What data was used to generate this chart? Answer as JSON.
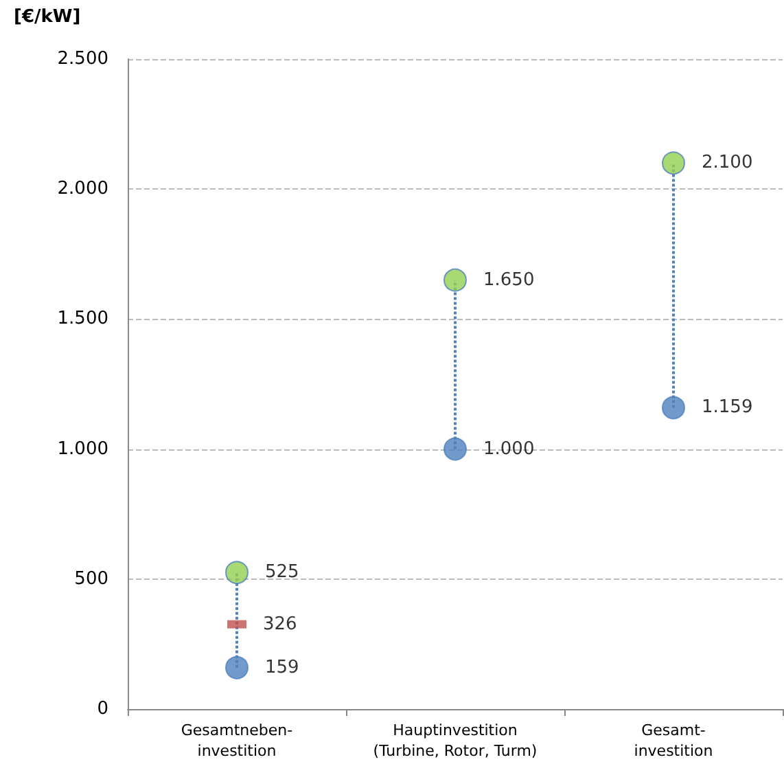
{
  "chart_data": {
    "type": "scatter",
    "ylabel": "[€/kW]",
    "categories": [
      "Gesamtneben-\ninvestition",
      "Hauptinvestition\n(Turbine, Rotor, Turm)",
      "Gesamt-\ninvestition"
    ],
    "series": [
      {
        "type": "line",
        "color": "#4f81bd",
        "x": [
          "Gesamtneben-\ninvestition",
          "Gesamtneben-\ninvestition"
        ],
        "values": [
          159,
          525
        ],
        "line_style": "dotted",
        "marker": "none"
      },
      {
        "type": "line",
        "color": "#4f81bd",
        "x": [
          "Hauptinvestition\n(Turbine, Rotor, Turm)",
          "Hauptinvestition\n(Turbine, Rotor, Turm)"
        ],
        "values": [
          1000,
          1650
        ],
        "line_style": "dotted",
        "marker": "none"
      },
      {
        "type": "line",
        "color": "#4f81bd",
        "x": [
          "Gesamt-\ninvestition",
          "Gesamt-\ninvestition"
        ],
        "values": [
          1159,
          2100
        ],
        "line_style": "dotted",
        "marker": "none"
      },
      {
        "color": "#4f81bd",
        "values": [
          159,
          1000,
          1159
        ],
        "value_labels": [
          "159",
          "1.000",
          "1.159"
        ],
        "marker": "circle"
      },
      {
        "color": "#c0504d",
        "values": [
          326,
          null,
          null
        ],
        "value_labels": [
          "326",
          null,
          null
        ],
        "marker": "square"
      },
      {
        "color": "#92d050",
        "values": [
          525,
          1650,
          2100
        ],
        "value_labels": [
          "525",
          "1.650",
          "2.100"
        ],
        "marker": "circle"
      }
    ],
    "ylim": [
      0,
      2500
    ],
    "yticks": [
      0,
      500,
      {
        "value": 1000,
        "label": "1.000"
      },
      {
        "value": 1500,
        "label": "1.500"
      },
      {
        "value": 2000,
        "label": "2.000"
      },
      {
        "value": 2500,
        "label": "2.500"
      }
    ],
    "grid": "y"
  }
}
